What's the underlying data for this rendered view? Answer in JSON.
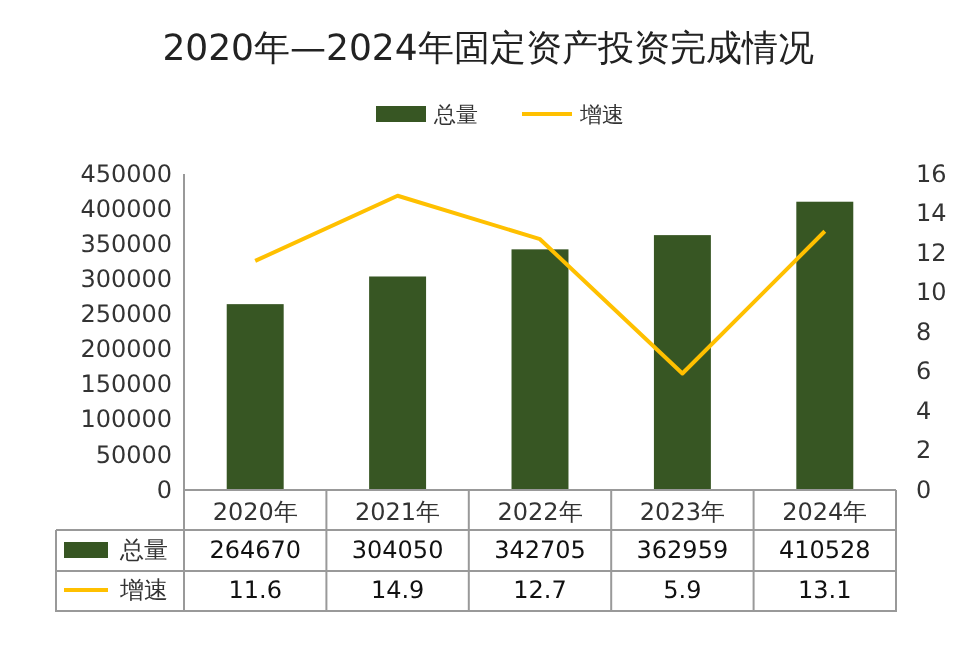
{
  "chart_data": {
    "type": "bar",
    "title": "2020年—2024年固定资产投资完成情况",
    "categories": [
      "2020年",
      "2021年",
      "2022年",
      "2023年",
      "2024年"
    ],
    "series": [
      {
        "name": "总量",
        "color": "#375623",
        "values": [
          264670,
          304050,
          342705,
          362959,
          410528
        ]
      },
      {
        "name": "增速",
        "type": "line",
        "axis": "y2",
        "color": "#ffc000",
        "values": [
          11.6,
          14.9,
          12.7,
          5.9,
          13.1
        ]
      }
    ],
    "ylim": [
      0,
      450000
    ],
    "yticks": [
      0,
      50000,
      100000,
      150000,
      200000,
      250000,
      300000,
      350000,
      400000,
      450000
    ],
    "y2lim": [
      0,
      16
    ],
    "y2ticks": [
      0,
      2,
      4,
      6,
      8,
      10,
      12,
      14,
      16
    ],
    "legend": "top",
    "data_labels": true,
    "marker": "none"
  }
}
